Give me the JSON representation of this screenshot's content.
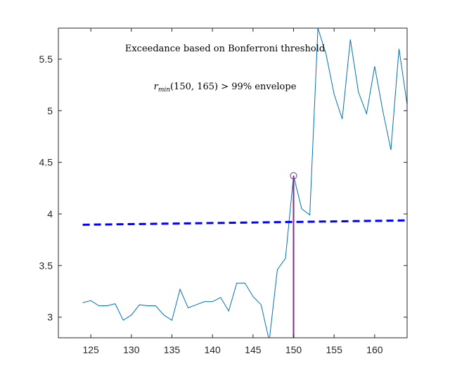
{
  "chart_data": {
    "type": "line",
    "title": "",
    "xlabel": "",
    "ylabel": "",
    "xlim": [
      121,
      164
    ],
    "ylim": [
      2.8,
      5.8
    ],
    "grid": false,
    "x_ticks": [
      125,
      130,
      135,
      140,
      145,
      150,
      155,
      160
    ],
    "y_ticks": [
      3,
      3.5,
      4,
      4.5,
      5,
      5.5
    ],
    "x_tick_labels": [
      "125",
      "130",
      "135",
      "140",
      "145",
      "150",
      "155",
      "160"
    ],
    "y_tick_labels": [
      "3",
      "3.5",
      "4",
      "4.5",
      "5",
      "5.5"
    ],
    "series": [
      {
        "type": "line",
        "color": "#0072BD",
        "x": [
          124,
          125,
          126,
          127,
          128,
          129,
          130,
          131,
          132,
          133,
          134,
          135,
          136,
          137,
          138,
          139,
          140,
          141,
          142,
          143,
          144,
          145,
          146,
          147,
          148,
          149,
          150,
          151,
          152,
          153,
          154,
          155,
          156,
          157,
          158,
          159,
          160,
          161,
          162,
          163,
          164
        ],
        "y": [
          3.14,
          3.16,
          3.11,
          3.11,
          3.13,
          2.97,
          3.02,
          3.12,
          3.11,
          3.11,
          3.02,
          2.97,
          3.27,
          3.09,
          3.12,
          3.15,
          3.15,
          3.19,
          3.06,
          3.33,
          3.33,
          3.2,
          3.12,
          2.77,
          3.46,
          3.57,
          4.37,
          4.05,
          3.99,
          5.8,
          5.55,
          5.16,
          4.92,
          5.69,
          5.18,
          4.97,
          5.43,
          5.0,
          4.62,
          5.6,
          5.06
        ]
      },
      {
        "type": "dashed-line",
        "color": "#0000FF",
        "x": [
          124,
          164
        ],
        "y": [
          3.895,
          3.937
        ]
      }
    ],
    "marker": {
      "x": 150,
      "y": 4.37,
      "color": "#7E2F8E"
    },
    "annotations": {
      "line1": "Exceedance based on Bonferroni threshold",
      "line2_sym": "r",
      "line2_sub": "min",
      "line2_args": "(150, 165)",
      "line2_rest": " > 99% envelope"
    }
  }
}
